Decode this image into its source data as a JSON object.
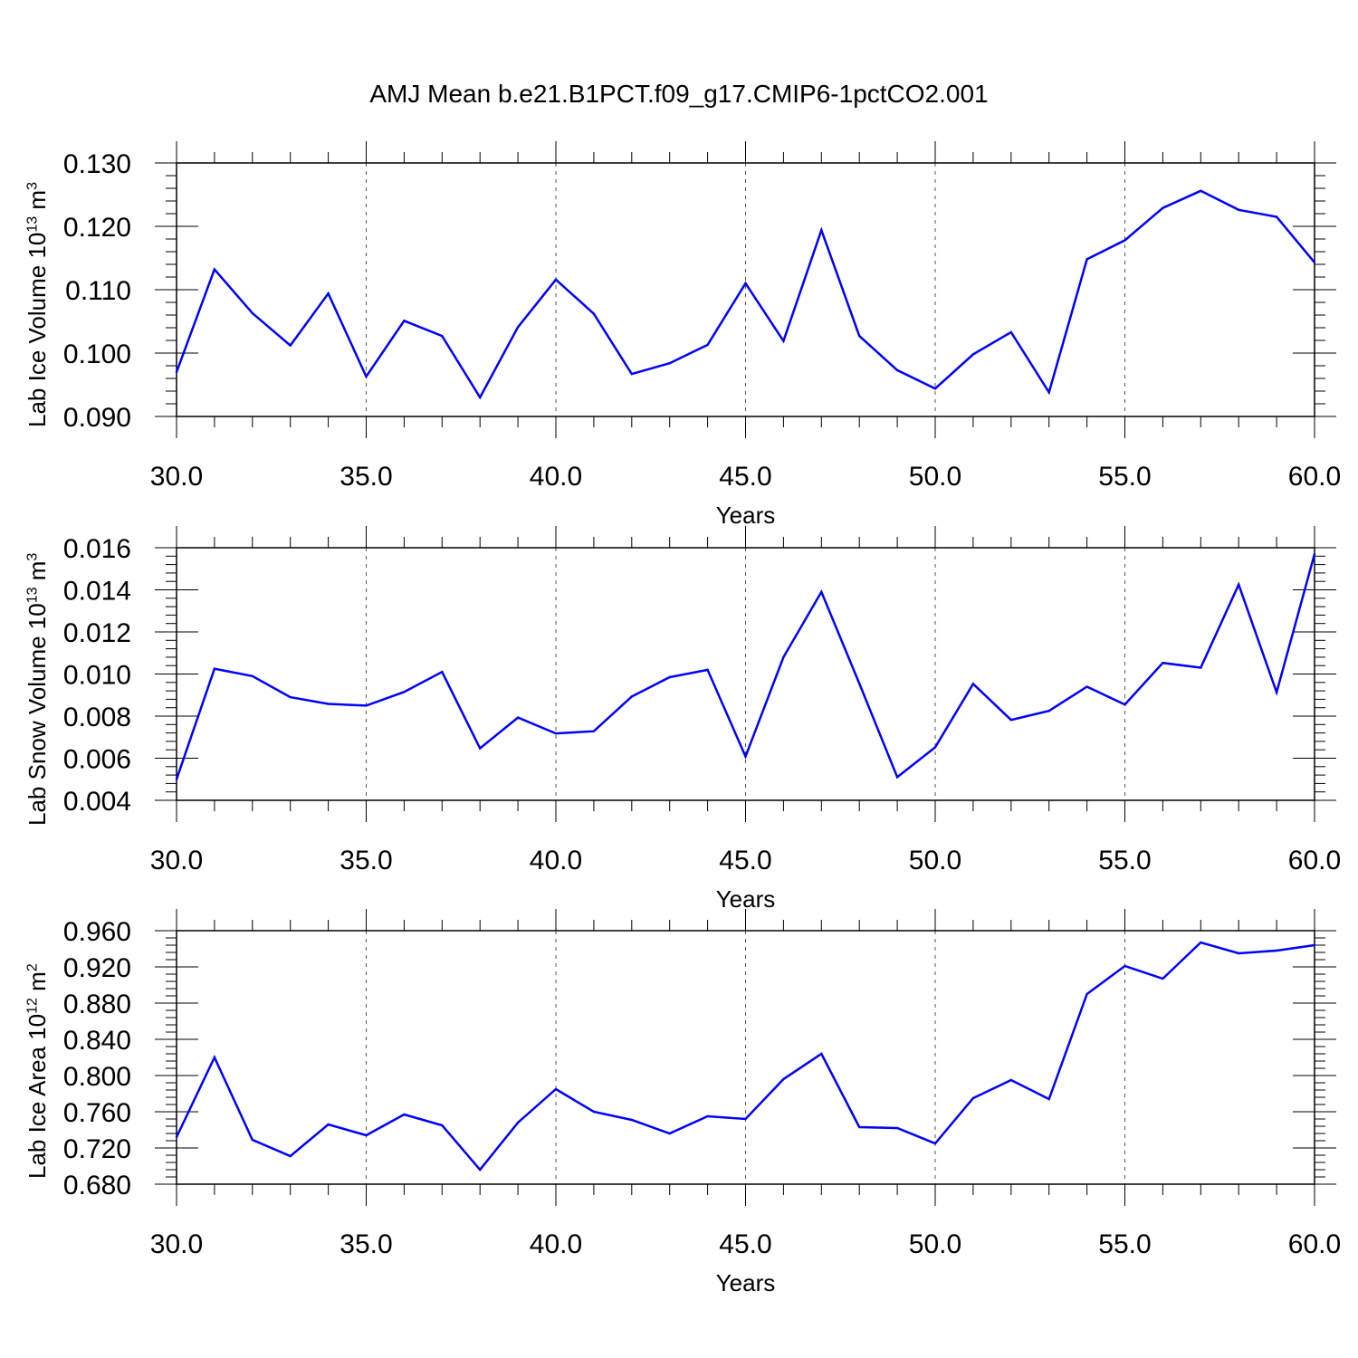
{
  "title": "AMJ Mean b.e21.B1PCT.f09_g17.CMIP6-1pctCO2.001",
  "colors": {
    "line": "#0000ff",
    "axis": "#000000",
    "grid": "#555555"
  },
  "chart_data": [
    {
      "type": "line",
      "xlabel": "Years",
      "ylabel": {
        "text": "Lab Ice Volume 10",
        "sup1": "13",
        "unit": " m",
        "sup2": "3"
      },
      "xlim": [
        30,
        60
      ],
      "ylim": [
        0.09,
        0.13
      ],
      "xticks": [
        "30.0",
        "35.0",
        "40.0",
        "45.0",
        "50.0",
        "55.0",
        "60.0"
      ],
      "yticks": [
        "0.090",
        "0.100",
        "0.110",
        "0.120",
        "0.130"
      ],
      "x": [
        30,
        31,
        32,
        33,
        34,
        35,
        36,
        37,
        38,
        39,
        40,
        41,
        42,
        43,
        44,
        45,
        46,
        47,
        48,
        49,
        50,
        51,
        52,
        53,
        54,
        55,
        56,
        57,
        58,
        59,
        60
      ],
      "values": [
        0.097,
        0.1132,
        0.1063,
        0.1012,
        0.1094,
        0.0963,
        0.1051,
        0.1027,
        0.093,
        0.1041,
        0.1116,
        0.1062,
        0.0967,
        0.0984,
        0.1013,
        0.111,
        0.1019,
        0.1194,
        0.1027,
        0.0973,
        0.0944,
        0.0998,
        0.1033,
        0.0938,
        0.1148,
        0.1178,
        0.1229,
        0.1256,
        0.1226,
        0.1215,
        0.1143
      ]
    },
    {
      "type": "line",
      "xlabel": "Years",
      "ylabel": {
        "text": "Lab Snow Volume 10",
        "sup1": "13",
        "unit": " m",
        "sup2": "3"
      },
      "xlim": [
        30,
        60
      ],
      "ylim": [
        0.004,
        0.016
      ],
      "xticks": [
        "30.0",
        "35.0",
        "40.0",
        "45.0",
        "50.0",
        "55.0",
        "60.0"
      ],
      "yticks": [
        "0.004",
        "0.006",
        "0.008",
        "0.010",
        "0.012",
        "0.014",
        "0.016"
      ],
      "x": [
        30,
        31,
        32,
        33,
        34,
        35,
        36,
        37,
        38,
        39,
        40,
        41,
        42,
        43,
        44,
        45,
        46,
        47,
        48,
        49,
        50,
        51,
        52,
        53,
        54,
        55,
        56,
        57,
        58,
        59,
        60
      ],
      "values": [
        0.005,
        0.01025,
        0.0099,
        0.0089,
        0.00858,
        0.0085,
        0.00915,
        0.0101,
        0.00647,
        0.00793,
        0.00718,
        0.00728,
        0.00893,
        0.00985,
        0.0102,
        0.00608,
        0.0108,
        0.0139,
        0.00955,
        0.0051,
        0.00652,
        0.00953,
        0.00782,
        0.00825,
        0.0094,
        0.00855,
        0.01053,
        0.0103,
        0.01425,
        0.00913,
        0.0157
      ]
    },
    {
      "type": "line",
      "xlabel": "Years",
      "ylabel": {
        "text": "Lab Ice Area 10",
        "sup1": "12",
        "unit": " m",
        "sup2": "2"
      },
      "xlim": [
        30,
        60
      ],
      "ylim": [
        0.68,
        0.96
      ],
      "xticks": [
        "30.0",
        "35.0",
        "40.0",
        "45.0",
        "50.0",
        "55.0",
        "60.0"
      ],
      "yticks": [
        "0.680",
        "0.720",
        "0.760",
        "0.800",
        "0.840",
        "0.880",
        "0.920",
        "0.960"
      ],
      "x": [
        30,
        31,
        32,
        33,
        34,
        35,
        36,
        37,
        38,
        39,
        40,
        41,
        42,
        43,
        44,
        45,
        46,
        47,
        48,
        49,
        50,
        51,
        52,
        53,
        54,
        55,
        56,
        57,
        58,
        59,
        60
      ],
      "values": [
        0.732,
        0.82,
        0.729,
        0.711,
        0.746,
        0.734,
        0.757,
        0.745,
        0.696,
        0.748,
        0.785,
        0.76,
        0.751,
        0.736,
        0.755,
        0.752,
        0.796,
        0.824,
        0.743,
        0.742,
        0.725,
        0.775,
        0.795,
        0.774,
        0.89,
        0.921,
        0.907,
        0.947,
        0.935,
        0.938,
        0.944
      ]
    }
  ]
}
